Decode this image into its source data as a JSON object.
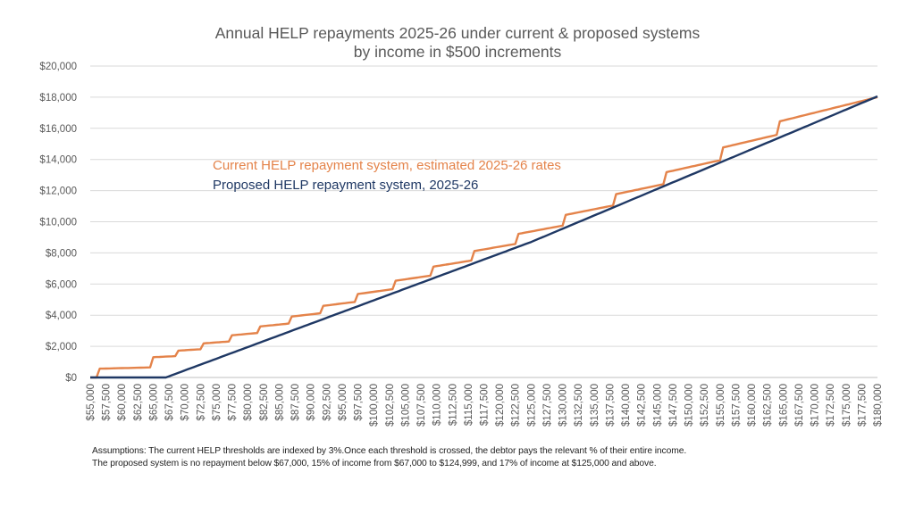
{
  "chart_data": {
    "type": "line",
    "title": "Annual HELP repayments 2025-26 under current & proposed systems",
    "subtitle": "by income in $500 increments",
    "xlabel": "",
    "ylabel": "",
    "ylim": [
      0,
      20000
    ],
    "xlim": [
      55000,
      180000
    ],
    "grid": true,
    "legend_placement": "inside upper-left",
    "y_ticks": [
      "$0",
      "$2,000",
      "$4,000",
      "$6,000",
      "$8,000",
      "$10,000",
      "$12,000",
      "$14,000",
      "$16,000",
      "$18,000",
      "$20,000"
    ],
    "x_ticks": [
      "$55,000",
      "$57,500",
      "$60,000",
      "$62,500",
      "$65,000",
      "$67,500",
      "$70,000",
      "$72,500",
      "$75,000",
      "$77,500",
      "$80,000",
      "$82,500",
      "$85,000",
      "$87,500",
      "$90,000",
      "$92,500",
      "$95,000",
      "$97,500",
      "$100,000",
      "$102,500",
      "$105,000",
      "$107,500",
      "$110,000",
      "$112,500",
      "$115,000",
      "$117,500",
      "$120,000",
      "$122,500",
      "$125,000",
      "$127,500",
      "$130,000",
      "$132,500",
      "$135,000",
      "$137,500",
      "$140,000",
      "$142,500",
      "$145,000",
      "$147,500",
      "$150,000",
      "$152,500",
      "$155,000",
      "$157,500",
      "$160,000",
      "$162,500",
      "$165,000",
      "$167,500",
      "$170,000",
      "$172,500",
      "$175,000",
      "$177,500",
      "$180,000"
    ],
    "x": [
      55000,
      55500,
      56000,
      56500,
      57000,
      57500,
      58000,
      58500,
      59000,
      59500,
      60000,
      60500,
      61000,
      61500,
      62000,
      62500,
      63000,
      63500,
      64000,
      64500,
      65000,
      65500,
      66000,
      66500,
      67000,
      67500,
      68000,
      68500,
      69000,
      69500,
      70000,
      70500,
      71000,
      71500,
      72000,
      72500,
      73000,
      73500,
      74000,
      74500,
      75000,
      75500,
      76000,
      76500,
      77000,
      77500,
      78000,
      78500,
      79000,
      79500,
      80000,
      80500,
      81000,
      81500,
      82000,
      82500,
      83000,
      83500,
      84000,
      84500,
      85000,
      85500,
      86000,
      86500,
      87000,
      87500,
      88000,
      88500,
      89000,
      89500,
      90000,
      90500,
      91000,
      91500,
      92000,
      92500,
      93000,
      93500,
      94000,
      94500,
      95000,
      95500,
      96000,
      96500,
      97000,
      97500,
      98000,
      98500,
      99000,
      99500,
      100000,
      100500,
      101000,
      101500,
      102000,
      102500,
      103000,
      103500,
      104000,
      104500,
      105000,
      105500,
      106000,
      106500,
      107000,
      107500,
      108000,
      108500,
      109000,
      109500,
      110000,
      110500,
      111000,
      111500,
      112000,
      112500,
      113000,
      113500,
      114000,
      114500,
      115000,
      115500,
      116000,
      116500,
      117000,
      117500,
      118000,
      118500,
      119000,
      119500,
      120000,
      120500,
      121000,
      121500,
      122000,
      122500,
      123000,
      123500,
      124000,
      124500,
      125000,
      125500,
      126000,
      126500,
      127000,
      127500,
      128000,
      128500,
      129000,
      129500,
      130000,
      130500,
      131000,
      131500,
      132000,
      132500,
      133000,
      133500,
      134000,
      134500,
      135000,
      135500,
      136000,
      136500,
      137000,
      137500,
      138000,
      138500,
      139000,
      139500,
      140000,
      140500,
      141000,
      141500,
      142000,
      142500,
      143000,
      143500,
      144000,
      144500,
      145000,
      145500,
      146000,
      146500,
      147000,
      147500,
      148000,
      148500,
      149000,
      149500,
      150000,
      150500,
      151000,
      151500,
      152000,
      152500,
      153000,
      153500,
      154000,
      154500,
      155000,
      155500,
      156000,
      156500,
      157000,
      157500,
      158000,
      158500,
      159000,
      159500,
      160000,
      160500,
      161000,
      161500,
      162000,
      162500,
      163000,
      163500,
      164000,
      164500,
      165000,
      165500,
      166000,
      166500,
      167000,
      167500,
      168000,
      168500,
      169000,
      169500,
      170000,
      170500,
      171000,
      171500,
      172000,
      172500,
      173000,
      173500,
      174000,
      174500,
      175000,
      175500,
      176000,
      176500,
      177000,
      177500,
      178000,
      178500,
      179000,
      179500,
      180000
    ],
    "series": [
      {
        "name": "Current HELP repayment system, estimated 2025-26 rates",
        "color": "#E4834A",
        "values": [
          0,
          0,
          0,
          565,
          570,
          575,
          580,
          585,
          590,
          595,
          600,
          605,
          610,
          615,
          620,
          625,
          630,
          635,
          640,
          645,
          1300,
          1310,
          1320,
          1330,
          1340,
          1350,
          1360,
          1370,
          1725,
          1737.5,
          1750,
          1762.5,
          1775,
          1787.5,
          1800,
          1812.5,
          2190,
          2205,
          2220,
          2235,
          2250,
          2265,
          2280,
          2295,
          2310,
          2712.5,
          2730,
          2747.5,
          2765,
          2782.5,
          2800,
          2817.5,
          2835,
          2852.5,
          3280,
          3300,
          3320,
          3340,
          3360,
          3380,
          3400,
          3420,
          3440,
          3460,
          3915,
          3937.5,
          3960,
          3982.5,
          4005,
          4027.5,
          4050,
          4072.5,
          4095,
          4117.5,
          4600,
          4625,
          4650,
          4675,
          4700,
          4725,
          4750,
          4775,
          4800,
          4825,
          4850,
          5362.5,
          5390,
          5417.5,
          5445,
          5472.5,
          5500,
          5527.5,
          5555,
          5582.5,
          5610,
          5637.5,
          5665,
          6210,
          6240,
          6270,
          6300,
          6330,
          6360,
          6390,
          6420,
          6450,
          6480,
          6510,
          6540,
          7117.5,
          7150,
          7182.5,
          7215,
          7247.5,
          7280,
          7312.5,
          7345,
          7377.5,
          7410,
          7442.5,
          7475,
          7507.5,
          8120,
          8155,
          8190,
          8225,
          8260,
          8295,
          8330,
          8365,
          8400,
          8435,
          8470,
          8505,
          8540,
          8575,
          9225,
          9262.5,
          9300,
          9337.5,
          9375,
          9412.5,
          9450,
          9487.5,
          9525,
          9562.5,
          9600,
          9637.5,
          9675,
          9712.5,
          9750,
          10440,
          10480,
          10520,
          10560,
          10600,
          10640,
          10680,
          10720,
          10760,
          10800,
          10840,
          10880,
          10920,
          10960,
          11000,
          11040,
          11772.5,
          11815,
          11857.5,
          11900,
          11942.5,
          11985,
          12027.5,
          12070,
          12112.5,
          12155,
          12197.5,
          12240,
          12282.5,
          12325,
          12367.5,
          12410,
          13185,
          13230,
          13275,
          13320,
          13365,
          13410,
          13455,
          13500,
          13545,
          13590,
          13635,
          13680,
          13725,
          13770,
          13815,
          13860,
          13905,
          13950,
          14772.5,
          14820,
          14867.5,
          14915,
          14962.5,
          15010,
          15057.5,
          15105,
          15152.5,
          15200,
          15247.5,
          15295,
          15342.5,
          15390,
          15437.5,
          15485,
          15532.5,
          15580,
          16450,
          16500,
          16550,
          16600,
          16650,
          16700,
          16750,
          16800,
          16850,
          16900,
          16950,
          17000,
          17050,
          17100,
          17150,
          17200,
          17250,
          17300,
          17350,
          17400,
          17450,
          17500,
          17550,
          17600,
          17650,
          17700,
          17750,
          17800,
          17850,
          17900,
          17950,
          18000
        ]
      },
      {
        "name": "Proposed HELP repayment system, 2025-26",
        "color": "#1F3864",
        "values": [
          0,
          0,
          0,
          0,
          0,
          0,
          0,
          0,
          0,
          0,
          0,
          0,
          0,
          0,
          0,
          0,
          0,
          0,
          0,
          0,
          0,
          0,
          0,
          0,
          0,
          75,
          150,
          225,
          300,
          375,
          450,
          525,
          600,
          675,
          750,
          825,
          900,
          975,
          1050,
          1125,
          1200,
          1275,
          1350,
          1425,
          1500,
          1575,
          1650,
          1725,
          1800,
          1875,
          1950,
          2025,
          2100,
          2175,
          2250,
          2325,
          2400,
          2475,
          2550,
          2625,
          2700,
          2775,
          2850,
          2925,
          3000,
          3075,
          3150,
          3225,
          3300,
          3375,
          3450,
          3525,
          3600,
          3675,
          3750,
          3825,
          3900,
          3975,
          4050,
          4125,
          4200,
          4275,
          4350,
          4425,
          4500,
          4575,
          4650,
          4725,
          4800,
          4875,
          4950,
          5025,
          5100,
          5175,
          5250,
          5325,
          5400,
          5475,
          5550,
          5625,
          5700,
          5775,
          5850,
          5925,
          6000,
          6075,
          6150,
          6225,
          6300,
          6375,
          6450,
          6525,
          6600,
          6675,
          6750,
          6825,
          6900,
          6975,
          7050,
          7125,
          7200,
          7275,
          7350,
          7425,
          7500,
          7575,
          7650,
          7725,
          7800,
          7875,
          7950,
          8025,
          8100,
          8175,
          8250,
          8325,
          8400,
          8475,
          8550,
          8625,
          8700,
          8785,
          8870,
          8955,
          9040,
          9125,
          9210,
          9295,
          9380,
          9465,
          9550,
          9635,
          9720,
          9805,
          9890,
          9975,
          10060,
          10145,
          10230,
          10315,
          10400,
          10485,
          10570,
          10655,
          10740,
          10825,
          10910,
          10995,
          11080,
          11165,
          11250,
          11335,
          11420,
          11505,
          11590,
          11675,
          11760,
          11845,
          11930,
          12015,
          12100,
          12185,
          12270,
          12355,
          12440,
          12525,
          12610,
          12695,
          12780,
          12865,
          12950,
          13035,
          13120,
          13205,
          13290,
          13375,
          13460,
          13545,
          13630,
          13715,
          13800,
          13885,
          13970,
          14055,
          14140,
          14225,
          14310,
          14395,
          14480,
          14565,
          14650,
          14735,
          14820,
          14905,
          14990,
          15075,
          15160,
          15245,
          15330,
          15415,
          15500,
          15585,
          15670,
          15755,
          15840,
          15925,
          16010,
          16095,
          16180,
          16265,
          16350,
          16435,
          16520,
          16605,
          16690,
          16775,
          16860,
          16945,
          17030,
          17115,
          17200,
          17285,
          17370,
          17455,
          17540,
          17625,
          17710,
          17795,
          17880,
          17965,
          18050
        ]
      }
    ],
    "notes": [
      "Assumptions: The current HELP thresholds are indexed by 3%.Once each threshold is crossed, the debtor pays the relevant % of their entire income.",
      "The proposed system is no repayment below $67,000, 15% of income from $67,000 to $124,999, and 17% of income at $125,000 and above."
    ]
  }
}
